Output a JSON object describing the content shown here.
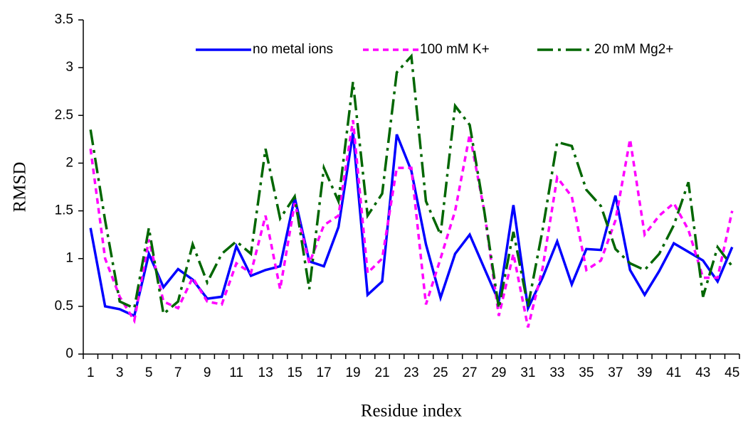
{
  "chart_data": {
    "type": "line",
    "x_label": "Residue index",
    "y_label": "RMSD",
    "categories": [
      1,
      null,
      3,
      null,
      5,
      null,
      7,
      null,
      9,
      null,
      11,
      null,
      13,
      null,
      15,
      null,
      17,
      null,
      19,
      null,
      21,
      null,
      23,
      null,
      25,
      null,
      27,
      null,
      29,
      null,
      31,
      null,
      33,
      null,
      35,
      null,
      37,
      null,
      39,
      null,
      41,
      null,
      43,
      null,
      45
    ],
    "series": [
      {
        "name": "no metal ions",
        "color": "#0000ff",
        "dash": "solid",
        "values": [
          1.32,
          0.5,
          0.47,
          0.4,
          1.05,
          0.7,
          0.89,
          0.78,
          0.58,
          0.6,
          1.13,
          0.82,
          0.88,
          0.92,
          1.64,
          0.97,
          0.92,
          1.33,
          2.32,
          0.62,
          0.76,
          2.3,
          1.92,
          1.15,
          0.59,
          1.05,
          1.25,
          0.9,
          0.55,
          1.56,
          0.48,
          0.8,
          1.18,
          0.73,
          1.1,
          1.09,
          1.66,
          0.88,
          0.62,
          0.87,
          1.16,
          1.07,
          0.98,
          0.76,
          1.12
        ]
      },
      {
        "name": "100 mM K+",
        "color": "#ff00ff",
        "dash": "dash",
        "values": [
          2.15,
          1.0,
          0.6,
          0.35,
          1.2,
          0.55,
          0.48,
          0.8,
          0.55,
          0.52,
          0.95,
          0.85,
          1.45,
          0.68,
          1.58,
          0.95,
          1.35,
          1.45,
          2.45,
          0.85,
          1.0,
          1.95,
          1.95,
          0.52,
          1.0,
          1.5,
          2.3,
          1.5,
          0.4,
          1.05,
          0.28,
          0.9,
          1.85,
          1.65,
          0.88,
          0.98,
          1.4,
          2.25,
          1.25,
          1.45,
          1.58,
          1.3,
          0.8,
          0.8,
          1.5
        ]
      },
      {
        "name": "20 mM Mg2+",
        "color": "#006600",
        "dash": "dashdot",
        "values": [
          2.35,
          1.4,
          0.55,
          0.48,
          1.32,
          0.42,
          0.55,
          1.15,
          0.75,
          1.05,
          1.18,
          1.05,
          2.15,
          1.42,
          1.65,
          0.68,
          1.95,
          1.6,
          2.85,
          1.45,
          1.68,
          2.95,
          3.12,
          1.6,
          1.25,
          2.6,
          2.4,
          1.5,
          0.48,
          1.28,
          0.5,
          1.3,
          2.22,
          2.18,
          1.72,
          1.55,
          1.1,
          0.95,
          0.88,
          1.05,
          1.35,
          1.8,
          0.6,
          1.12,
          0.92
        ]
      }
    ],
    "ylim": [
      0,
      3.5
    ],
    "yticks": [
      0,
      0.5,
      1,
      1.5,
      2,
      2.5,
      3,
      3.5
    ],
    "grid": false,
    "legend": "top-right"
  }
}
